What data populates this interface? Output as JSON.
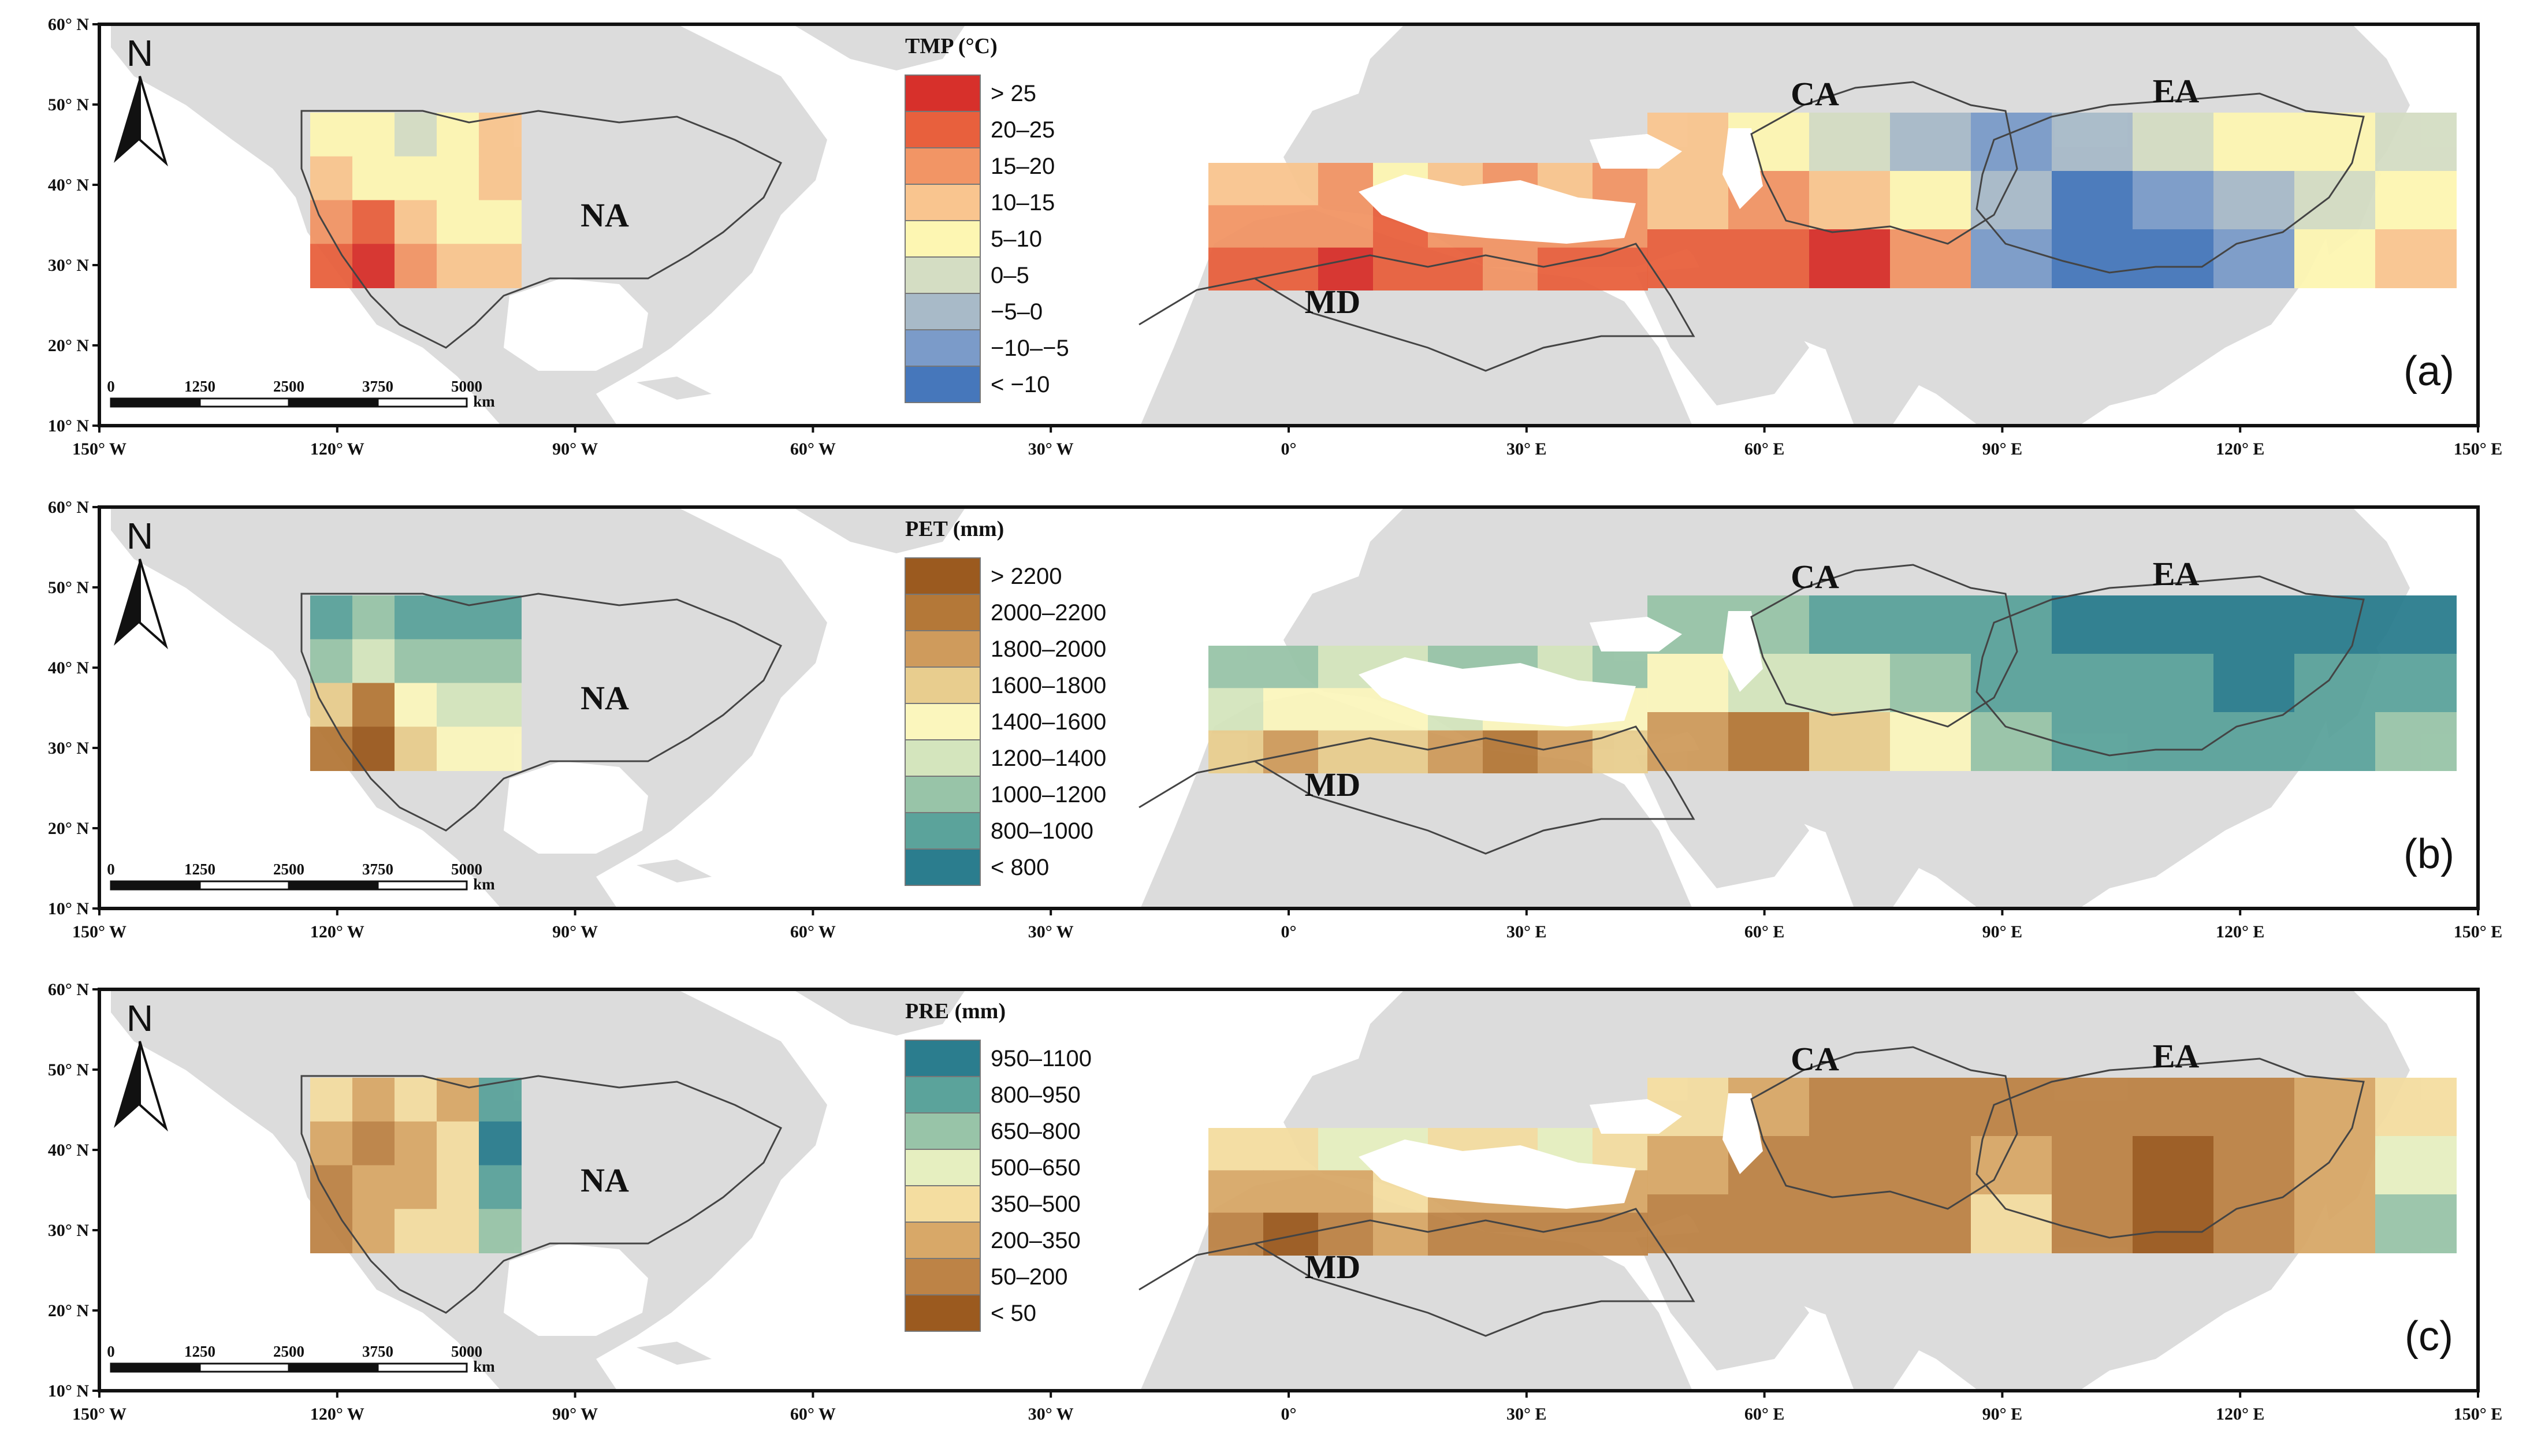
{
  "lon_ticks": [
    "150° W",
    "120° W",
    "90° W",
    "60° W",
    "30° W",
    "0°",
    "30° E",
    "60° E",
    "90° E",
    "120° E",
    "150° E"
  ],
  "lat_ticks": [
    "60° N",
    "50° N",
    "40° N",
    "30° N",
    "20° N",
    "10° N"
  ],
  "regions": {
    "na": "NA",
    "md": "MD",
    "ca": "CA",
    "ea": "EA"
  },
  "north_label": "N",
  "scale_bar": {
    "labels": [
      "0",
      "1250",
      "2500",
      "3750",
      "5000"
    ],
    "unit": "km"
  },
  "panels": [
    {
      "id": "a",
      "tag": "(a)",
      "legend_title": "TMP (°C)",
      "legend": [
        {
          "label": "> 25",
          "color": "#d7302b"
        },
        {
          "label": "20–25",
          "color": "#e8603d"
        },
        {
          "label": "15–20",
          "color": "#f29565"
        },
        {
          "label": "10–15",
          "color": "#f9c58f"
        },
        {
          "label": "5–10",
          "color": "#fdf6b2"
        },
        {
          "label": "0–5",
          "color": "#d4ddc3"
        },
        {
          "label": "−5–0",
          "color": "#a8bac8"
        },
        {
          "label": "−10–−5",
          "color": "#7b9bc9"
        },
        {
          "label": "< −10",
          "color": "#4677bb"
        }
      ]
    },
    {
      "id": "b",
      "tag": "(b)",
      "legend_title": "PET (mm)",
      "legend": [
        {
          "label": "> 2200",
          "color": "#9b5a1f"
        },
        {
          "label": "2000–2200",
          "color": "#b47838"
        },
        {
          "label": "1800–2000",
          "color": "#cf9b5c"
        },
        {
          "label": "1600–1800",
          "color": "#e8cd8e"
        },
        {
          "label": "1400–1600",
          "color": "#fbf6bd"
        },
        {
          "label": "1200–1400",
          "color": "#d4e5bd"
        },
        {
          "label": "1000–1200",
          "color": "#98c4a8"
        },
        {
          "label": "800–1000",
          "color": "#5ba39b"
        },
        {
          "label": "< 800",
          "color": "#2b7d8e"
        }
      ]
    },
    {
      "id": "c",
      "tag": "(c)",
      "legend_title": "PRE (mm)",
      "legend": [
        {
          "label": "950–1100",
          "color": "#2b7d8e"
        },
        {
          "label": "800–950",
          "color": "#5ba39b"
        },
        {
          "label": "650–800",
          "color": "#98c4a8"
        },
        {
          "label": "500–650",
          "color": "#e6efc0"
        },
        {
          "label": "350–500",
          "color": "#f4dda0"
        },
        {
          "label": "200–350",
          "color": "#d8a868"
        },
        {
          "label": "50–200",
          "color": "#bd8346"
        },
        {
          "label": "< 50",
          "color": "#9b5a1f"
        }
      ]
    }
  ]
}
